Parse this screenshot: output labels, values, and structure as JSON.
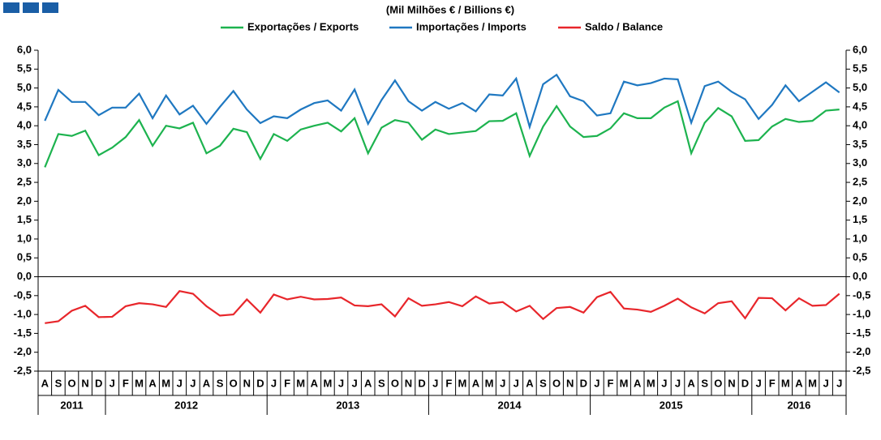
{
  "chart_data": {
    "type": "line",
    "subtitle": "(Mil Milhões € / Billions €)",
    "categories": [
      "A",
      "S",
      "O",
      "N",
      "D",
      "J",
      "F",
      "M",
      "A",
      "M",
      "J",
      "J",
      "A",
      "S",
      "O",
      "N",
      "D",
      "J",
      "F",
      "M",
      "A",
      "M",
      "J",
      "J",
      "A",
      "S",
      "O",
      "N",
      "D",
      "J",
      "F",
      "M",
      "A",
      "M",
      "J",
      "J",
      "A",
      "S",
      "O",
      "N",
      "D",
      "J",
      "F",
      "M",
      "A",
      "M",
      "J",
      "J",
      "A",
      "S",
      "O",
      "N",
      "D",
      "J",
      "F",
      "M",
      "A",
      "M",
      "J",
      "J"
    ],
    "year_groups": [
      {
        "label": "2011",
        "months": 5
      },
      {
        "label": "2012",
        "months": 12
      },
      {
        "label": "2013",
        "months": 12
      },
      {
        "label": "2014",
        "months": 12
      },
      {
        "label": "2015",
        "months": 12
      },
      {
        "label": "2016",
        "months": 7
      }
    ],
    "series": [
      {
        "name": "Exportações / Exports",
        "color": "#1db34f",
        "values": [
          2.9,
          3.78,
          3.73,
          3.87,
          3.22,
          3.42,
          3.7,
          4.15,
          3.47,
          4.0,
          3.93,
          4.08,
          3.27,
          3.47,
          3.92,
          3.83,
          3.12,
          3.78,
          3.6,
          3.9,
          4.0,
          4.08,
          3.85,
          4.2,
          3.27,
          3.95,
          4.15,
          4.08,
          3.63,
          3.9,
          3.78,
          3.82,
          3.86,
          4.12,
          4.13,
          4.33,
          3.2,
          3.98,
          4.52,
          3.98,
          3.7,
          3.73,
          3.93,
          4.33,
          4.2,
          4.2,
          4.48,
          4.65,
          3.27,
          4.08,
          4.47,
          4.25,
          3.6,
          3.62,
          3.98,
          4.18,
          4.1,
          4.13,
          4.4,
          4.43
        ]
      },
      {
        "name": "Importações / Imports",
        "color": "#1f78c1",
        "values": [
          4.13,
          4.95,
          4.63,
          4.63,
          4.28,
          4.48,
          4.48,
          4.85,
          4.2,
          4.8,
          4.3,
          4.53,
          4.05,
          4.5,
          4.92,
          4.43,
          4.07,
          4.25,
          4.2,
          4.43,
          4.6,
          4.67,
          4.4,
          4.96,
          4.05,
          4.68,
          5.2,
          4.65,
          4.4,
          4.63,
          4.45,
          4.6,
          4.38,
          4.83,
          4.8,
          5.25,
          3.97,
          5.1,
          5.35,
          4.78,
          4.65,
          4.27,
          4.33,
          5.17,
          5.07,
          5.13,
          5.25,
          5.23,
          4.08,
          5.05,
          5.17,
          4.9,
          4.7,
          4.18,
          4.55,
          5.07,
          4.65,
          4.9,
          5.15,
          4.88
        ]
      },
      {
        "name": "Saldo / Balance",
        "color": "#e8262b",
        "values": [
          -1.23,
          -1.18,
          -0.9,
          -0.77,
          -1.07,
          -1.06,
          -0.78,
          -0.7,
          -0.73,
          -0.8,
          -0.38,
          -0.45,
          -0.78,
          -1.03,
          -1.0,
          -0.6,
          -0.95,
          -0.47,
          -0.6,
          -0.53,
          -0.6,
          -0.59,
          -0.55,
          -0.76,
          -0.78,
          -0.73,
          -1.05,
          -0.57,
          -0.77,
          -0.73,
          -0.67,
          -0.78,
          -0.52,
          -0.71,
          -0.67,
          -0.92,
          -0.77,
          -1.12,
          -0.83,
          -0.8,
          -0.95,
          -0.54,
          -0.4,
          -0.84,
          -0.87,
          -0.93,
          -0.77,
          -0.58,
          -0.81,
          -0.97,
          -0.7,
          -0.65,
          -1.1,
          -0.56,
          -0.57,
          -0.89,
          -0.57,
          -0.77,
          -0.75,
          -0.45
        ]
      }
    ],
    "ylim": [
      -2.5,
      6
    ],
    "yticks": [
      {
        "value": 6,
        "label": "6,0"
      },
      {
        "value": 5.5,
        "label": "5,5"
      },
      {
        "value": 5,
        "label": "5,0"
      },
      {
        "value": 4.5,
        "label": "4,5"
      },
      {
        "value": 4,
        "label": "4,0"
      },
      {
        "value": 3.5,
        "label": "3,5"
      },
      {
        "value": 3,
        "label": "3,0"
      },
      {
        "value": 2.5,
        "label": "2,5"
      },
      {
        "value": 2,
        "label": "2,0"
      },
      {
        "value": 1.5,
        "label": "1,5"
      },
      {
        "value": 1,
        "label": "1,0"
      },
      {
        "value": 0.5,
        "label": "0,5"
      },
      {
        "value": 0,
        "label": "0,0"
      },
      {
        "value": -0.5,
        "label": "-0,5"
      },
      {
        "value": -1,
        "label": "-1,0"
      },
      {
        "value": -1.5,
        "label": "-1,5"
      },
      {
        "value": -2,
        "label": "-2,0"
      },
      {
        "value": -2.5,
        "label": "-2,5"
      }
    ]
  }
}
